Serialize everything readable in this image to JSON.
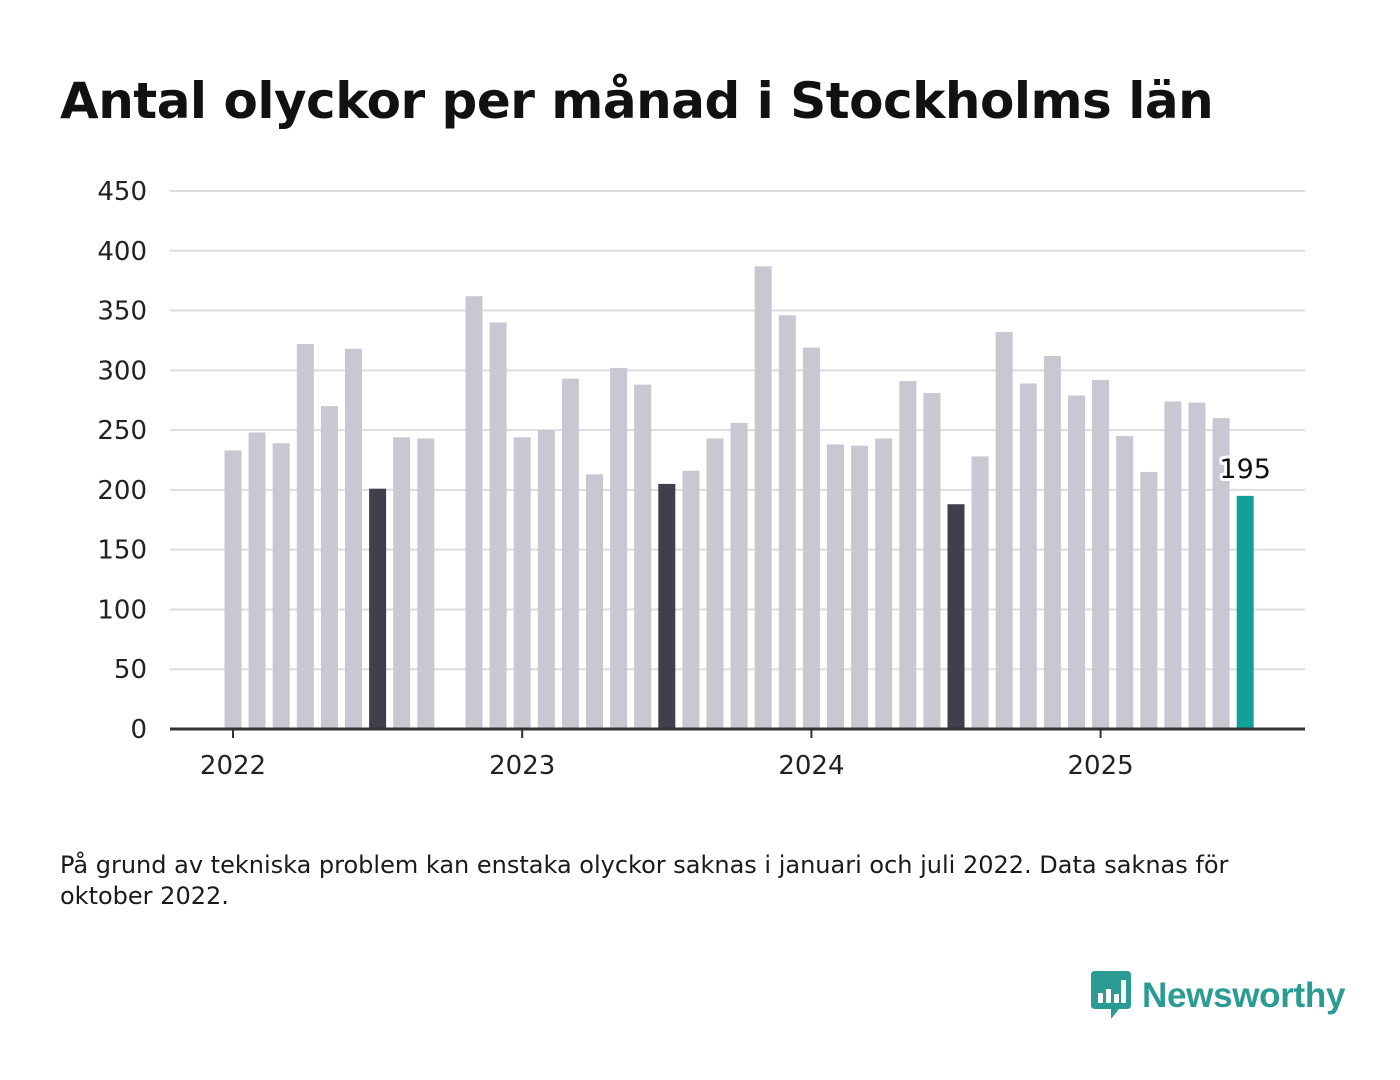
{
  "title": "Antal olyckor per månad i Stockholms län",
  "footnote": "På grund av tekniska problem kan enstaka olyckor saknas i januari och juli 2022. Data saknas för oktober 2022.",
  "brand": {
    "name": "Newsworthy",
    "icon": "newsworthy-logo-icon"
  },
  "colors": {
    "bar": "#c8c7d2",
    "highlight": "#403f4c",
    "latest": "#13a197",
    "grid": "#dddddd",
    "axis": "#333333",
    "brand": "#2a9c94"
  },
  "chart_data": {
    "type": "bar",
    "title": "Antal olyckor per månad i Stockholms län",
    "xlabel": "",
    "ylabel": "",
    "ylim": [
      0,
      450
    ],
    "yticks": [
      0,
      50,
      100,
      150,
      200,
      250,
      300,
      350,
      400,
      450
    ],
    "xticks": [
      "2022",
      "2023",
      "2024",
      "2025"
    ],
    "grid": true,
    "categories": [
      "2022-01",
      "2022-02",
      "2022-03",
      "2022-04",
      "2022-05",
      "2022-06",
      "2022-07",
      "2022-08",
      "2022-09",
      "2022-10",
      "2022-11",
      "2022-12",
      "2023-01",
      "2023-02",
      "2023-03",
      "2023-04",
      "2023-05",
      "2023-06",
      "2023-07",
      "2023-08",
      "2023-09",
      "2023-10",
      "2023-11",
      "2023-12",
      "2024-01",
      "2024-02",
      "2024-03",
      "2024-04",
      "2024-05",
      "2024-06",
      "2024-07",
      "2024-08",
      "2024-09",
      "2024-10",
      "2024-11",
      "2024-12",
      "2025-01",
      "2025-02",
      "2025-03",
      "2025-04",
      "2025-05",
      "2025-06",
      "2025-07"
    ],
    "values": [
      233,
      248,
      239,
      322,
      270,
      318,
      201,
      244,
      243,
      null,
      362,
      340,
      244,
      250,
      293,
      213,
      302,
      288,
      205,
      216,
      243,
      256,
      387,
      346,
      319,
      238,
      237,
      243,
      291,
      281,
      188,
      228,
      332,
      289,
      312,
      279,
      292,
      245,
      215,
      274,
      273,
      260,
      195
    ],
    "highlighted": [
      "2022-07",
      "2023-07",
      "2024-07"
    ],
    "latest": "2025-07",
    "annotations": [
      {
        "category": "2025-07",
        "text": "195"
      }
    ]
  }
}
